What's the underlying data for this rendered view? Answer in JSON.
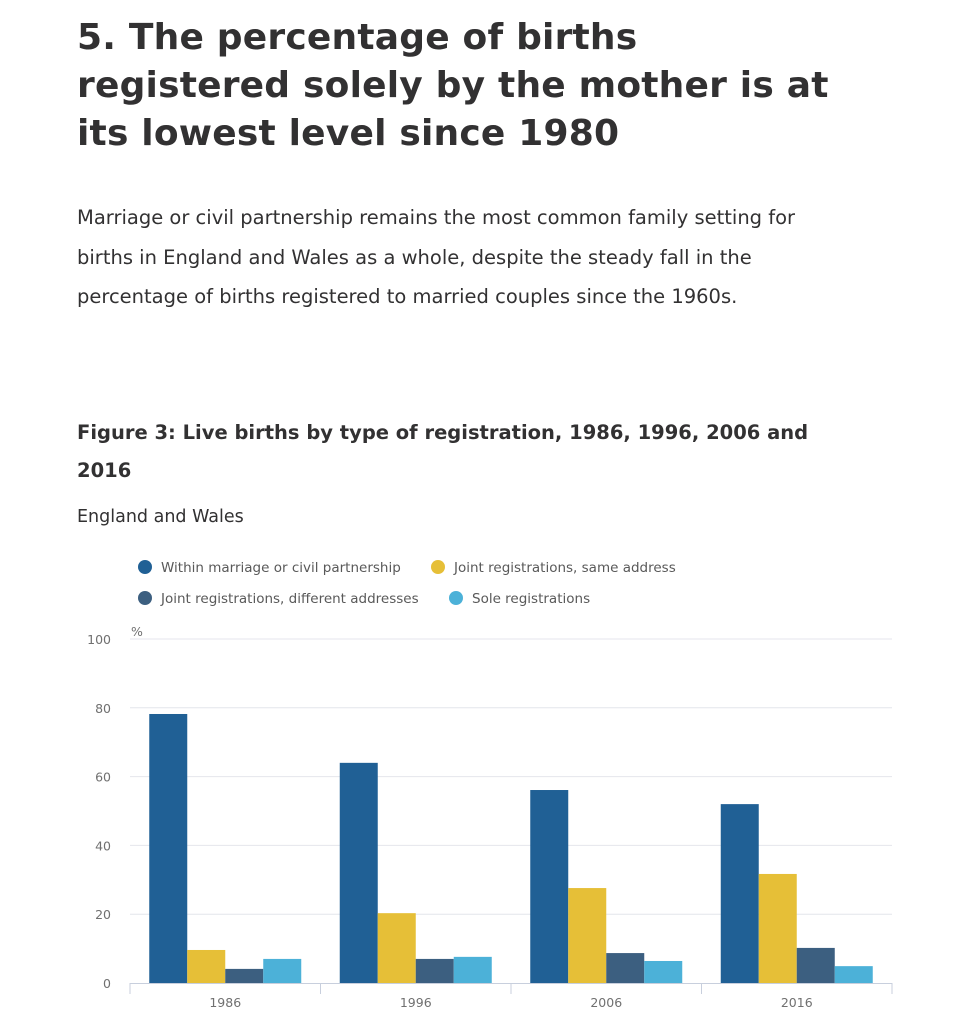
{
  "section": {
    "heading": "5.  The percentage of births registered solely by the mother is at its lowest level since 1980",
    "paragraph": "Marriage or civil partnership remains the most common family setting for births in England and Wales as a whole, despite the steady fall in the percentage of births registered to married couples since the 1960s."
  },
  "figure": {
    "title": "Figure 3: Live births by type of registration, 1986, 1996, 2006 and 2016",
    "subtitle": "England and Wales"
  },
  "chart_data": {
    "type": "bar",
    "title": "Figure 3: Live births by type of registration, 1986, 1996, 2006 and 2016",
    "subtitle": "England and Wales",
    "xlabel": "",
    "ylabel": "%",
    "ylim": [
      0,
      100
    ],
    "yticks": [
      0,
      20,
      40,
      60,
      80,
      100
    ],
    "grid": true,
    "legend_position": "top-left",
    "categories": [
      "1986",
      "1996",
      "2006",
      "2016"
    ],
    "series": [
      {
        "name": "Within marriage or civil partnership",
        "color": "#206095",
        "values": [
          78.2,
          64.0,
          56.1,
          52.0
        ]
      },
      {
        "name": "Joint registrations, same address",
        "color": "#e6bf37",
        "values": [
          9.6,
          20.3,
          27.6,
          31.7
        ]
      },
      {
        "name": "Joint registrations, different addresses",
        "color": "#3c5f80",
        "values": [
          4.1,
          7.0,
          8.7,
          10.2
        ]
      },
      {
        "name": "Sole registrations",
        "color": "#4cb1d8",
        "values": [
          7.0,
          7.6,
          6.4,
          4.9
        ]
      }
    ]
  }
}
